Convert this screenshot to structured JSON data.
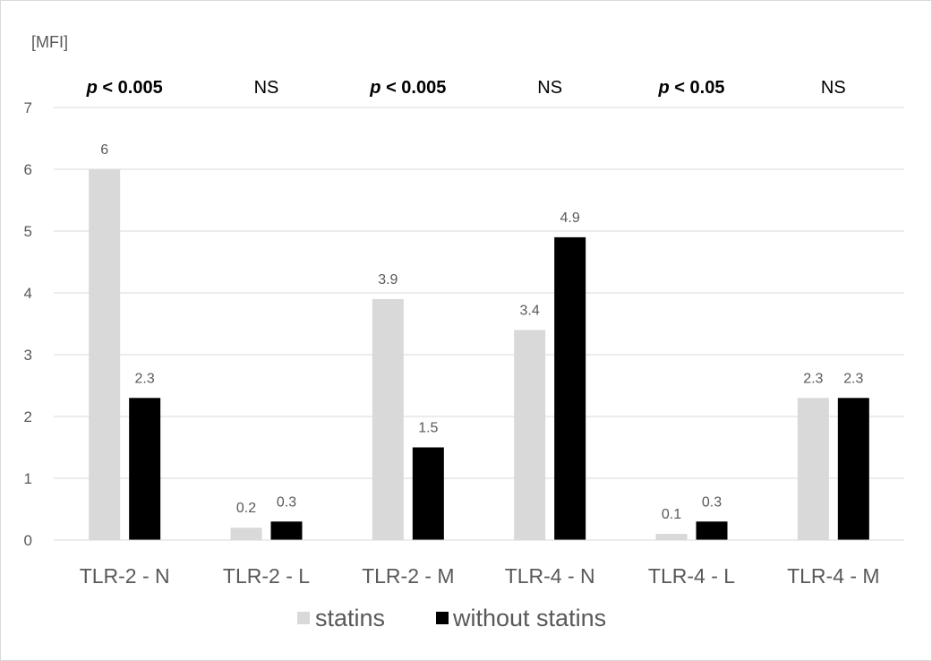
{
  "chart_data": {
    "type": "bar",
    "ylabel": "[MFI]",
    "categories": [
      "TLR-2  - N",
      "TLR-2  - L",
      "TLR-2  - M",
      "TLR-4  - N",
      "TLR-4  - L",
      "TLR-4  - M"
    ],
    "series": [
      {
        "name": "statins",
        "values": [
          6,
          0.2,
          3.9,
          3.4,
          0.1,
          2.3
        ],
        "color": "#d9d9d9"
      },
      {
        "name": "without statins",
        "values": [
          2.3,
          0.3,
          1.5,
          4.9,
          0.3,
          2.3
        ],
        "color": "#000000"
      }
    ],
    "ylim": [
      0,
      7
    ],
    "yticks": [
      "0",
      "1",
      "2",
      "3",
      "4",
      "5",
      "6",
      "7"
    ],
    "grid": true,
    "legend_position": "bottom",
    "annotations": [
      {
        "prefix": "p",
        "text": " < 0.005",
        "bold": true
      },
      {
        "prefix": "",
        "text": "NS",
        "bold": false
      },
      {
        "prefix": "p",
        "text": " < 0.005",
        "bold": true
      },
      {
        "prefix": "",
        "text": "NS",
        "bold": false
      },
      {
        "prefix": "p",
        "text": " < 0.05",
        "bold": true
      },
      {
        "prefix": "",
        "text": "NS",
        "bold": false
      }
    ]
  }
}
